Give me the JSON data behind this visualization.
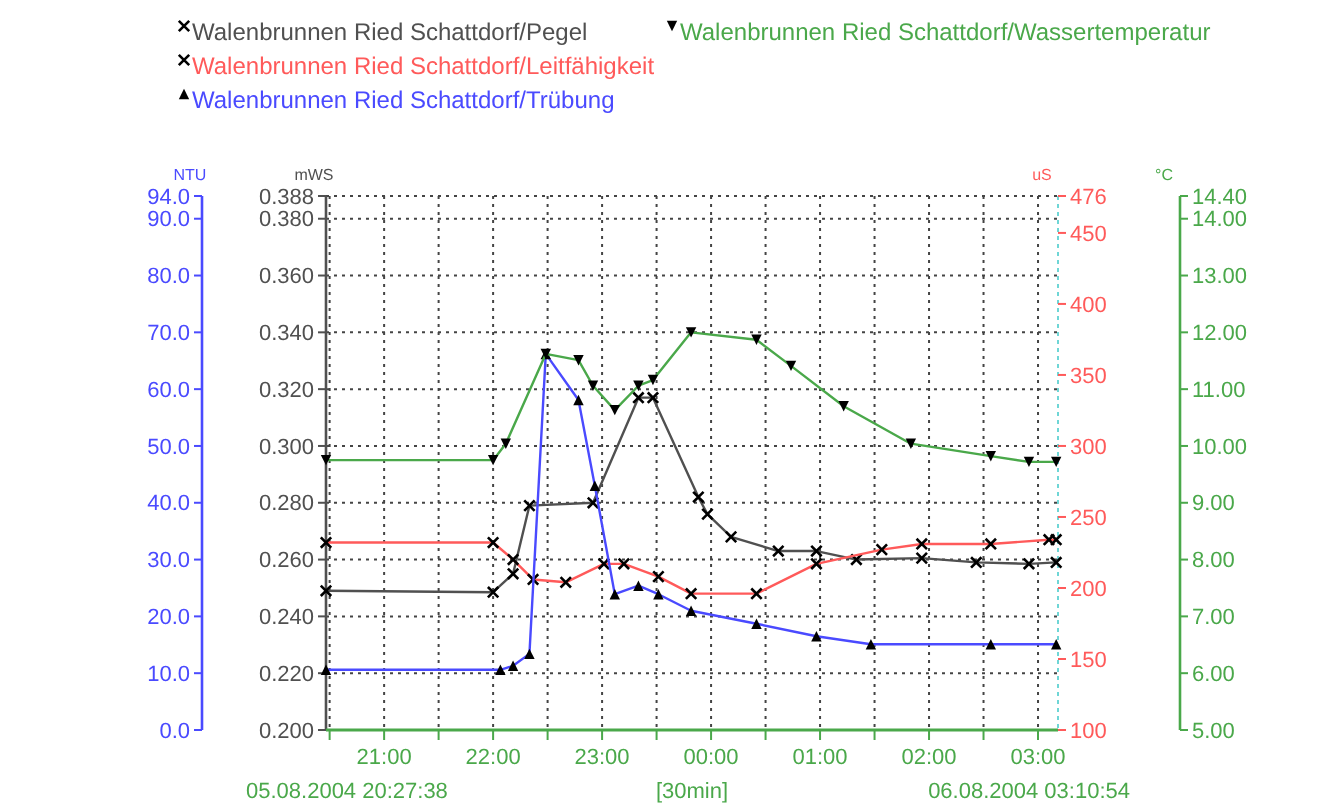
{
  "chart_data": [
    {
      "type": "line",
      "xlabel": "[30min]",
      "ylabel": "mWS",
      "y2label": "uS",
      "y3label": "NTU",
      "xlim": [
        "2004-08-05T20:28",
        "2004-08-06T03:11"
      ],
      "xticks": [
        {
          "value": "2004-08-05T20:30",
          "label": null
        },
        {
          "value": "2004-08-05T21:00",
          "label": "21:00"
        },
        {
          "value": "2004-08-05T21:30",
          "label": null
        },
        {
          "value": "2004-08-05T22:00",
          "label": "22:00"
        },
        {
          "value": "2004-08-05T22:30",
          "label": null
        },
        {
          "value": "2004-08-05T23:00",
          "label": "23:00"
        },
        {
          "value": "2004-08-05T23:30",
          "label": null
        },
        {
          "value": "2004-08-06T00:00",
          "label": "00:00"
        },
        {
          "value": "2004-08-06T00:30",
          "label": null
        },
        {
          "value": "2004-08-06T01:00",
          "label": "01:00"
        },
        {
          "value": "2004-08-06T01:30",
          "label": null
        },
        {
          "value": "2004-08-06T02:00",
          "label": "02:00"
        },
        {
          "value": "2004-08-06T02:30",
          "label": null
        },
        {
          "value": "2004-08-06T03:00",
          "label": "03:00"
        }
      ],
      "ylim": [
        0.2,
        0.388
      ],
      "yticks": [
        {
          "value": 0.2,
          "label": "0.200"
        },
        {
          "value": 0.22,
          "label": "0.220"
        },
        {
          "value": 0.24,
          "label": "0.240"
        },
        {
          "value": 0.26,
          "label": "0.260"
        },
        {
          "value": 0.28,
          "label": "0.280"
        },
        {
          "value": 0.3,
          "label": "0.300"
        },
        {
          "value": 0.32,
          "label": "0.320"
        },
        {
          "value": 0.34,
          "label": "0.340"
        },
        {
          "value": 0.36,
          "label": "0.360"
        },
        {
          "value": 0.38,
          "label": "0.380"
        },
        {
          "value": 0.388,
          "label": "0.388"
        }
      ],
      "y2lim": [
        100,
        476
      ],
      "y2ticks": [
        100,
        150,
        200,
        250,
        300,
        350,
        400,
        450,
        476
      ],
      "y3lim": [
        0,
        94
      ],
      "y3ticks": [
        {
          "value": 0,
          "label": "0.0"
        },
        {
          "value": 10,
          "label": "10.0"
        },
        {
          "value": 20,
          "label": "20.0"
        },
        {
          "value": 30,
          "label": "30.0"
        },
        {
          "value": 40,
          "label": "40.0"
        },
        {
          "value": 50,
          "label": "50.0"
        },
        {
          "value": 60,
          "label": "60.0"
        },
        {
          "value": 70,
          "label": "70.0"
        },
        {
          "value": 80,
          "label": "80.0"
        },
        {
          "value": 90,
          "label": "90.0"
        },
        {
          "value": 94,
          "label": "94.0"
        }
      ],
      "grid": true,
      "legend": "top",
      "annotations": [
        "05.08.2004 20:27:38",
        "06.08.2004 03:10:54"
      ],
      "series": [
        {
          "name": "Walenbrunnen Ried Schattdorf/Pegel",
          "color": "#505050",
          "axis": "y",
          "marker": "cross",
          "x": [
            "2004-08-05T20:28",
            "2004-08-05T22:00",
            "2004-08-05T22:11",
            "2004-08-05T22:20",
            "2004-08-05T22:55",
            "2004-08-05T23:20",
            "2004-08-05T23:28",
            "2004-08-05T23:53",
            "2004-08-05T23:58",
            "2004-08-06T00:11",
            "2004-08-06T00:37",
            "2004-08-06T00:58",
            "2004-08-06T01:20",
            "2004-08-06T01:56",
            "2004-08-06T02:26",
            "2004-08-06T02:55",
            "2004-08-06T03:10"
          ],
          "values": [
            0.249,
            0.2485,
            0.255,
            0.279,
            0.28,
            0.317,
            0.317,
            0.282,
            0.276,
            0.268,
            0.263,
            0.263,
            0.26,
            0.2605,
            0.259,
            0.2585,
            0.259
          ]
        },
        {
          "name": "Walenbrunnen Ried Schattdorf/Leitfähigkeit",
          "color": "#ff5a5a",
          "axis": "y2",
          "marker": "cross",
          "x": [
            "2004-08-05T20:28",
            "2004-08-05T22:00",
            "2004-08-05T22:11",
            "2004-08-05T22:22",
            "2004-08-05T22:40",
            "2004-08-05T23:01",
            "2004-08-05T23:12",
            "2004-08-05T23:31",
            "2004-08-05T23:49",
            "2004-08-06T00:25",
            "2004-08-06T00:58",
            "2004-08-06T01:34",
            "2004-08-06T01:56",
            "2004-08-06T02:34",
            "2004-08-06T03:06",
            "2004-08-06T03:10"
          ],
          "values": [
            232,
            232,
            220,
            206,
            204,
            217,
            217,
            208,
            196,
            196,
            217,
            227,
            231,
            231,
            234,
            234
          ]
        },
        {
          "name": "Walenbrunnen Ried Schattdorf/Trübung",
          "color": "#4a4aff",
          "axis": "y3",
          "marker": "triangle",
          "x": [
            "2004-08-05T20:28",
            "2004-08-05T22:04",
            "2004-08-05T22:11",
            "2004-08-05T22:20",
            "2004-08-05T22:29",
            "2004-08-05T22:47",
            "2004-08-05T22:56",
            "2004-08-05T23:07",
            "2004-08-05T23:20",
            "2004-08-05T23:31",
            "2004-08-05T23:49",
            "2004-08-06T00:25",
            "2004-08-06T00:58",
            "2004-08-06T01:28",
            "2004-08-06T02:34",
            "2004-08-06T03:10"
          ],
          "values": [
            10.6,
            10.6,
            11.3,
            13.4,
            66.2,
            58.1,
            43,
            23.9,
            25.4,
            23.9,
            21,
            18.7,
            16.5,
            15.1,
            15.1,
            15.1
          ]
        }
      ]
    },
    {
      "type": "line",
      "ylabel": "°C",
      "tick_labels": "y",
      "legend": "top",
      "xlim": [
        "2004-08-05T20:28",
        "2004-08-06T03:11"
      ],
      "ylim": [
        5,
        14.4
      ],
      "yticks": [
        {
          "value": 5,
          "label": "5.00"
        },
        {
          "value": 6,
          "label": "6.00"
        },
        {
          "value": 7,
          "label": "7.00"
        },
        {
          "value": 8,
          "label": "8.00"
        },
        {
          "value": 9,
          "label": "9.00"
        },
        {
          "value": 10,
          "label": "10.00"
        },
        {
          "value": 11,
          "label": "11.00"
        },
        {
          "value": 12,
          "label": "12.00"
        },
        {
          "value": 13,
          "label": "13.00"
        },
        {
          "value": 14,
          "label": "14.00"
        },
        {
          "value": 14.4,
          "label": "14.40"
        }
      ],
      "series": [
        {
          "name": "Walenbrunnen Ried Schattdorf/Wassertemperatur",
          "color": "#4aa84a",
          "marker": "triangle-down",
          "x": [
            "2004-08-05T20:28",
            "2004-08-05T22:00",
            "2004-08-05T22:07",
            "2004-08-05T22:29",
            "2004-08-05T22:47",
            "2004-08-05T22:55",
            "2004-08-05T23:07",
            "2004-08-05T23:20",
            "2004-08-05T23:28",
            "2004-08-05T23:49",
            "2004-08-06T00:25",
            "2004-08-06T00:44",
            "2004-08-06T01:13",
            "2004-08-06T01:50",
            "2004-08-06T02:34",
            "2004-08-06T02:55",
            "2004-08-06T03:10"
          ],
          "values": [
            9.75,
            9.75,
            10.04,
            11.62,
            11.51,
            11.06,
            10.63,
            11.06,
            11.16,
            12.0,
            11.87,
            11.41,
            10.7,
            10.04,
            9.82,
            9.72,
            9.72
          ]
        }
      ]
    }
  ]
}
